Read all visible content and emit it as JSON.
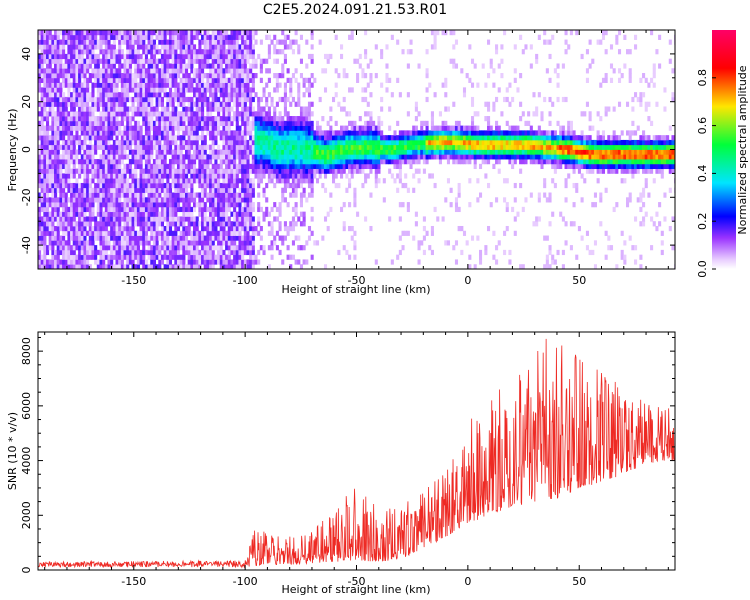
{
  "title": "C2E5.2024.091.21.53.R01",
  "colors": {
    "snr_line": "#ee2a24",
    "colormap": [
      "#ffffff",
      "#e8ccff",
      "#7a00ff",
      "#0000ff",
      "#00e5ff",
      "#00ff3a",
      "#ffe600",
      "#ff0000",
      "#ff0066"
    ]
  },
  "chart_data": [
    {
      "type": "heatmap",
      "name": "spectrogram",
      "xlabel": "Height of straight line (km)",
      "ylabel": "Frequency (Hz)",
      "xlim": [
        -193,
        93
      ],
      "ylim": [
        -50,
        50
      ],
      "xticks": [
        -150,
        -100,
        -50,
        0,
        50
      ],
      "yticks": [
        -40,
        -20,
        0,
        20,
        40
      ],
      "colorbar": {
        "label": "Normalized spectral amplitude",
        "range": [
          0,
          1
        ],
        "ticks": [
          "0.0",
          "0.2",
          "0.4",
          "0.6",
          "0.8"
        ]
      },
      "description_points": {
        "noise_region_x": [
          -193,
          -97
        ],
        "signal_start_x": -97,
        "ridge_frequency_hz": [
          [
            -95,
            4
          ],
          [
            -85,
            0
          ],
          [
            -75,
            1
          ],
          [
            -65,
            -2
          ],
          [
            -55,
            0
          ],
          [
            -45,
            1
          ],
          [
            -35,
            0
          ],
          [
            -25,
            2
          ],
          [
            -15,
            3
          ],
          [
            -5,
            3
          ],
          [
            5,
            2
          ],
          [
            15,
            2
          ],
          [
            25,
            2
          ],
          [
            35,
            1
          ],
          [
            45,
            0
          ],
          [
            55,
            -2
          ],
          [
            65,
            -2
          ],
          [
            75,
            -2
          ],
          [
            85,
            -2
          ],
          [
            93,
            -2
          ]
        ]
      }
    },
    {
      "type": "line",
      "name": "snr",
      "xlabel": "Height of straight line (km)",
      "ylabel": "SNR (10 * v/v)",
      "xlim": [
        -193,
        93
      ],
      "ylim": [
        0,
        8700
      ],
      "xticks": [
        -150,
        -100,
        -50,
        0,
        50
      ],
      "yticks": [
        0,
        2000,
        4000,
        6000,
        8000
      ],
      "envelope": {
        "x": [
          -193,
          -100,
          -95,
          -90,
          -80,
          -70,
          -60,
          -50,
          -40,
          -30,
          -20,
          -10,
          0,
          10,
          20,
          30,
          40,
          50,
          60,
          70,
          80,
          93
        ],
        "max": [
          300,
          350,
          1700,
          1400,
          1250,
          1500,
          2300,
          3100,
          2400,
          2300,
          3000,
          3600,
          5300,
          6800,
          7000,
          8300,
          8600,
          7800,
          7600,
          6600,
          6200,
          5900
        ],
        "min": [
          100,
          100,
          150,
          200,
          200,
          250,
          300,
          350,
          300,
          400,
          800,
          1200,
          1700,
          2000,
          2300,
          2500,
          2600,
          3000,
          3200,
          3500,
          3900,
          4000
        ]
      }
    }
  ]
}
